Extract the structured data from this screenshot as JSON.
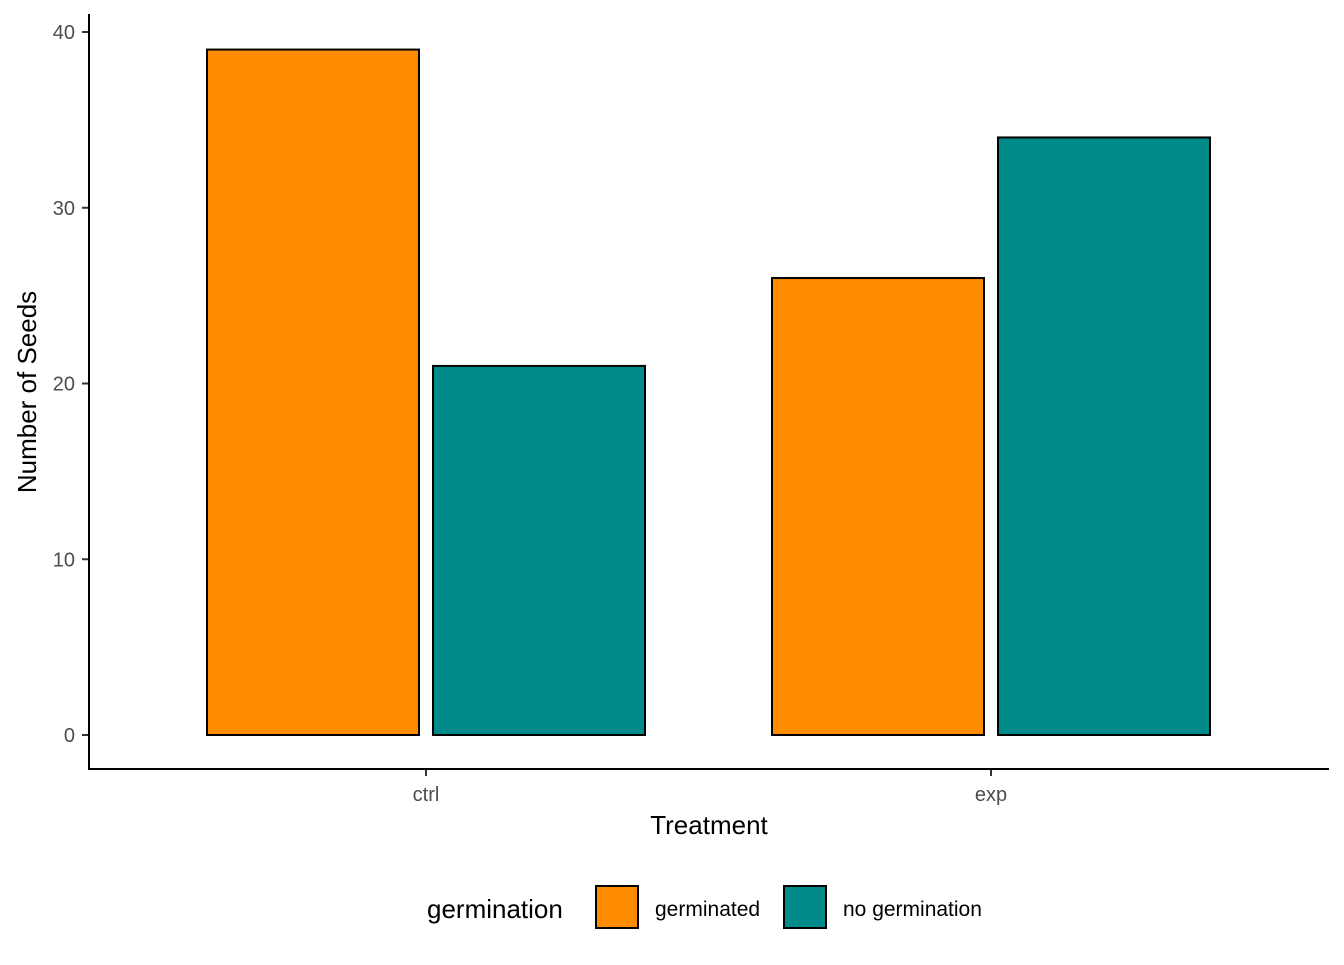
{
  "chart_data": {
    "type": "bar",
    "title": "",
    "xlabel": "Treatment",
    "ylabel": "Number of Seeds",
    "categories": [
      "ctrl",
      "exp"
    ],
    "series": [
      {
        "name": "germinated",
        "color": "#FF8C00",
        "values": [
          39,
          26
        ]
      },
      {
        "name": "no germination",
        "color": "#008B8B",
        "values": [
          21,
          34
        ]
      }
    ],
    "ylim": [
      0,
      40
    ],
    "yticks": [
      0,
      10,
      20,
      30,
      40
    ],
    "grid": false,
    "legend": {
      "title": "germination",
      "position": "bottom",
      "entries": [
        "germinated",
        "no germination"
      ]
    }
  }
}
